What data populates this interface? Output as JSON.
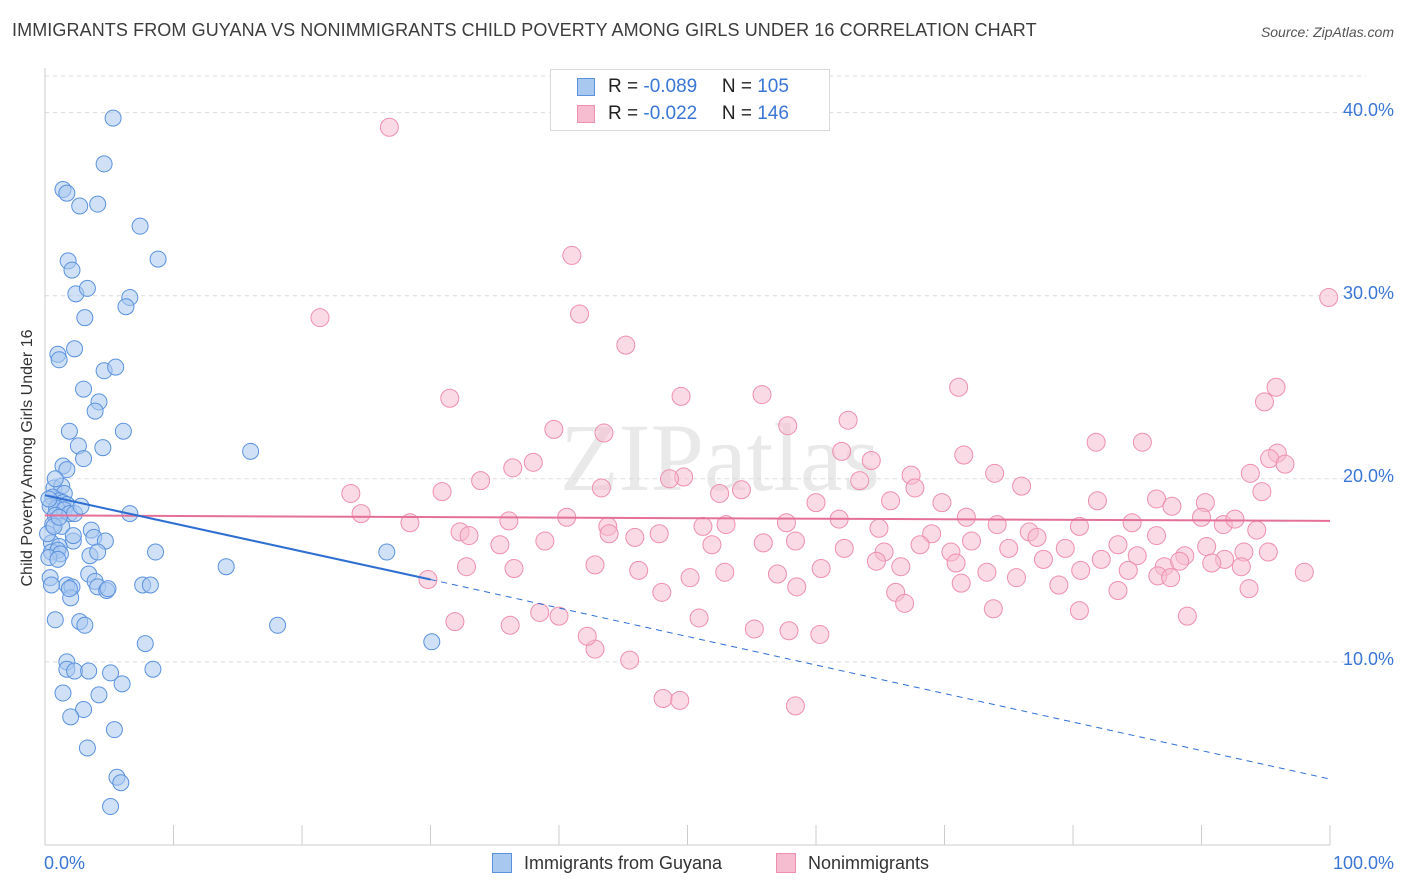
{
  "title": "IMMIGRANTS FROM GUYANA VS NONIMMIGRANTS CHILD POVERTY AMONG GIRLS UNDER 16 CORRELATION CHART",
  "source": "Source: ZipAtlas.com",
  "watermark": "ZIPatlas",
  "stats": [
    {
      "r_label": "R = ",
      "r_value": "-0.089",
      "n_label": "N = ",
      "n_value": "105"
    },
    {
      "r_label": "R = ",
      "r_value": "-0.022",
      "n_label": "N = ",
      "n_value": "146"
    }
  ],
  "chart_data": {
    "type": "scatter",
    "title": "IMMIGRANTS FROM GUYANA VS NONIMMIGRANTS CHILD POVERTY AMONG GIRLS UNDER 16 CORRELATION CHART",
    "xlabel": "",
    "ylabel": "Child Poverty Among Girls Under 16",
    "xlim": [
      0,
      100
    ],
    "ylim": [
      0,
      42
    ],
    "x_tick_labels": [
      "0.0%",
      "100.0%"
    ],
    "y_ticks": [
      10,
      20,
      30,
      40
    ],
    "y_tick_labels": [
      "10.0%",
      "20.0%",
      "30.0%",
      "40.0%"
    ],
    "grid": true,
    "legend_position": "bottom-center",
    "colors": {
      "guyana_fill": "#a9c8f0",
      "guyana_edge": "#5b92de",
      "guyana_line": "#2e6fd1",
      "nonimm_fill": "#f6bcd0",
      "nonimm_edge": "#ee8fae",
      "nonimm_line": "#e4709a",
      "accent_text": "#3a76d6",
      "grid": "#dcdcdc"
    },
    "series": [
      {
        "name": "Immigrants from Guyana",
        "r": -0.089,
        "n": 105,
        "trend": {
          "x0": 0,
          "y0": 19.1,
          "x_solid_end": 30,
          "y_solid_end": 14.5,
          "x1": 100,
          "y1": 3.6
        },
        "points": [
          [
            5.3,
            39.7
          ],
          [
            4.6,
            37.2
          ],
          [
            1.4,
            35.8
          ],
          [
            1.7,
            35.6
          ],
          [
            2.7,
            34.9
          ],
          [
            4.1,
            35.0
          ],
          [
            7.4,
            33.8
          ],
          [
            8.8,
            32.0
          ],
          [
            1.8,
            31.9
          ],
          [
            2.1,
            31.4
          ],
          [
            2.4,
            30.1
          ],
          [
            3.3,
            30.4
          ],
          [
            6.6,
            29.9
          ],
          [
            6.3,
            29.4
          ],
          [
            3.1,
            28.8
          ],
          [
            1.0,
            26.8
          ],
          [
            1.1,
            26.5
          ],
          [
            2.3,
            27.1
          ],
          [
            4.6,
            25.9
          ],
          [
            5.5,
            26.1
          ],
          [
            3.0,
            24.9
          ],
          [
            4.2,
            24.2
          ],
          [
            3.9,
            23.7
          ],
          [
            1.9,
            22.6
          ],
          [
            6.1,
            22.6
          ],
          [
            2.6,
            21.8
          ],
          [
            4.5,
            21.7
          ],
          [
            3.0,
            21.1
          ],
          [
            16.0,
            21.5
          ],
          [
            1.4,
            20.7
          ],
          [
            1.7,
            20.5
          ],
          [
            0.7,
            19.5
          ],
          [
            1.3,
            19.6
          ],
          [
            1.5,
            19.2
          ],
          [
            0.6,
            19.0
          ],
          [
            1.1,
            18.8
          ],
          [
            1.4,
            18.7
          ],
          [
            1.7,
            18.6
          ],
          [
            0.4,
            18.5
          ],
          [
            0.9,
            18.4
          ],
          [
            1.5,
            18.3
          ],
          [
            0.8,
            18.0
          ],
          [
            1.9,
            18.1
          ],
          [
            6.6,
            18.1
          ],
          [
            0.6,
            17.5
          ],
          [
            1.3,
            17.4
          ],
          [
            3.6,
            17.2
          ],
          [
            3.8,
            16.8
          ],
          [
            2.2,
            16.6
          ],
          [
            4.7,
            16.6
          ],
          [
            0.5,
            16.5
          ],
          [
            1.1,
            16.3
          ],
          [
            0.5,
            16.0
          ],
          [
            1.0,
            16.1
          ],
          [
            1.2,
            15.9
          ],
          [
            0.3,
            15.7
          ],
          [
            3.5,
            15.8
          ],
          [
            8.6,
            16.0
          ],
          [
            26.6,
            16.0
          ],
          [
            14.1,
            15.2
          ],
          [
            3.4,
            14.8
          ],
          [
            0.4,
            14.6
          ],
          [
            3.9,
            14.4
          ],
          [
            1.7,
            14.2
          ],
          [
            2.1,
            14.1
          ],
          [
            4.1,
            14.1
          ],
          [
            4.8,
            13.9
          ],
          [
            7.6,
            14.2
          ],
          [
            8.2,
            14.2
          ],
          [
            2.0,
            13.5
          ],
          [
            0.8,
            12.3
          ],
          [
            2.7,
            12.2
          ],
          [
            3.1,
            12.0
          ],
          [
            18.1,
            12.0
          ],
          [
            30.1,
            11.1
          ],
          [
            7.8,
            11.0
          ],
          [
            1.7,
            10.0
          ],
          [
            1.7,
            9.6
          ],
          [
            2.3,
            9.5
          ],
          [
            3.4,
            9.5
          ],
          [
            5.1,
            9.4
          ],
          [
            8.4,
            9.6
          ],
          [
            6.0,
            8.8
          ],
          [
            1.4,
            8.3
          ],
          [
            4.2,
            8.2
          ],
          [
            3.0,
            7.4
          ],
          [
            2.0,
            7.0
          ],
          [
            5.4,
            6.3
          ],
          [
            3.3,
            5.3
          ],
          [
            5.6,
            3.7
          ],
          [
            5.9,
            3.4
          ],
          [
            5.1,
            2.1
          ],
          [
            2.2,
            16.9
          ],
          [
            1.0,
            15.6
          ],
          [
            0.2,
            17.0
          ],
          [
            0.7,
            17.4
          ],
          [
            4.1,
            16.0
          ],
          [
            0.3,
            18.9
          ],
          [
            2.3,
            18.1
          ],
          [
            1.9,
            14.0
          ],
          [
            0.5,
            14.2
          ],
          [
            0.8,
            20.0
          ],
          [
            2.8,
            18.5
          ],
          [
            4.9,
            14.0
          ],
          [
            1.1,
            17.9
          ]
        ]
      },
      {
        "name": "Nonimmigrants",
        "r": -0.022,
        "n": 146,
        "trend": {
          "x0": 0,
          "y0": 18.0,
          "x1": 100,
          "y1": 17.7
        },
        "points": [
          [
            26.8,
            39.2
          ],
          [
            41.0,
            32.2
          ],
          [
            21.4,
            28.8
          ],
          [
            41.6,
            29.0
          ],
          [
            99.9,
            29.9
          ],
          [
            45.2,
            27.3
          ],
          [
            95.8,
            25.0
          ],
          [
            71.1,
            25.0
          ],
          [
            55.8,
            24.6
          ],
          [
            31.5,
            24.4
          ],
          [
            49.5,
            24.5
          ],
          [
            94.9,
            24.2
          ],
          [
            62.5,
            23.2
          ],
          [
            57.8,
            22.9
          ],
          [
            39.6,
            22.7
          ],
          [
            43.5,
            22.5
          ],
          [
            85.4,
            22.0
          ],
          [
            81.8,
            22.0
          ],
          [
            95.9,
            21.4
          ],
          [
            95.3,
            21.1
          ],
          [
            62.0,
            21.5
          ],
          [
            71.5,
            21.3
          ],
          [
            64.3,
            21.0
          ],
          [
            38.0,
            20.9
          ],
          [
            33.9,
            19.9
          ],
          [
            43.3,
            19.5
          ],
          [
            49.7,
            20.1
          ],
          [
            73.9,
            20.3
          ],
          [
            36.4,
            20.6
          ],
          [
            48.6,
            20.0
          ],
          [
            67.4,
            20.2
          ],
          [
            63.4,
            19.9
          ],
          [
            67.7,
            19.5
          ],
          [
            76.0,
            19.6
          ],
          [
            30.9,
            19.3
          ],
          [
            23.8,
            19.2
          ],
          [
            52.5,
            19.2
          ],
          [
            54.2,
            19.4
          ],
          [
            60.0,
            18.7
          ],
          [
            65.8,
            18.8
          ],
          [
            69.8,
            18.7
          ],
          [
            81.9,
            18.8
          ],
          [
            86.5,
            18.9
          ],
          [
            93.8,
            20.3
          ],
          [
            96.5,
            20.8
          ],
          [
            90.3,
            18.7
          ],
          [
            87.7,
            18.5
          ],
          [
            94.7,
            19.3
          ],
          [
            32.3,
            17.1
          ],
          [
            28.4,
            17.6
          ],
          [
            24.6,
            18.1
          ],
          [
            36.1,
            17.7
          ],
          [
            40.6,
            17.9
          ],
          [
            43.8,
            17.4
          ],
          [
            47.8,
            17.0
          ],
          [
            51.2,
            17.4
          ],
          [
            53.0,
            17.5
          ],
          [
            57.7,
            17.6
          ],
          [
            61.8,
            17.8
          ],
          [
            64.9,
            17.3
          ],
          [
            69.0,
            17.0
          ],
          [
            71.7,
            17.9
          ],
          [
            74.1,
            17.5
          ],
          [
            76.6,
            17.1
          ],
          [
            80.5,
            17.4
          ],
          [
            84.6,
            17.6
          ],
          [
            86.5,
            16.9
          ],
          [
            90.0,
            17.9
          ],
          [
            91.7,
            17.5
          ],
          [
            92.6,
            17.8
          ],
          [
            33.0,
            16.9
          ],
          [
            35.4,
            16.4
          ],
          [
            38.9,
            16.6
          ],
          [
            43.9,
            17.0
          ],
          [
            45.9,
            16.8
          ],
          [
            51.9,
            16.4
          ],
          [
            55.9,
            16.5
          ],
          [
            58.4,
            16.6
          ],
          [
            62.2,
            16.2
          ],
          [
            65.3,
            16.0
          ],
          [
            68.1,
            16.4
          ],
          [
            70.5,
            16.0
          ],
          [
            72.1,
            16.6
          ],
          [
            75.0,
            16.2
          ],
          [
            77.2,
            16.8
          ],
          [
            79.4,
            16.2
          ],
          [
            82.2,
            15.6
          ],
          [
            83.5,
            16.4
          ],
          [
            85.0,
            15.8
          ],
          [
            87.1,
            15.2
          ],
          [
            88.7,
            15.8
          ],
          [
            90.4,
            16.3
          ],
          [
            91.8,
            15.6
          ],
          [
            93.3,
            16.0
          ],
          [
            94.3,
            17.2
          ],
          [
            32.8,
            15.2
          ],
          [
            36.5,
            15.1
          ],
          [
            42.8,
            15.3
          ],
          [
            46.2,
            15.0
          ],
          [
            50.2,
            14.6
          ],
          [
            52.9,
            14.9
          ],
          [
            57.0,
            14.8
          ],
          [
            60.4,
            15.1
          ],
          [
            64.7,
            15.5
          ],
          [
            66.6,
            15.2
          ],
          [
            70.9,
            15.4
          ],
          [
            73.3,
            14.9
          ],
          [
            77.7,
            15.6
          ],
          [
            80.6,
            15.0
          ],
          [
            84.3,
            15.0
          ],
          [
            86.6,
            14.7
          ],
          [
            88.3,
            15.5
          ],
          [
            90.8,
            15.4
          ],
          [
            95.2,
            16.0
          ],
          [
            48.0,
            13.8
          ],
          [
            58.5,
            14.1
          ],
          [
            66.2,
            13.8
          ],
          [
            71.3,
            14.3
          ],
          [
            75.6,
            14.6
          ],
          [
            78.9,
            14.2
          ],
          [
            83.5,
            13.9
          ],
          [
            87.6,
            14.6
          ],
          [
            93.1,
            15.2
          ],
          [
            38.5,
            12.7
          ],
          [
            40.0,
            12.5
          ],
          [
            50.9,
            12.4
          ],
          [
            55.2,
            11.8
          ],
          [
            57.9,
            11.7
          ],
          [
            60.3,
            11.5
          ],
          [
            80.5,
            12.8
          ],
          [
            88.9,
            12.5
          ],
          [
            66.9,
            13.2
          ],
          [
            73.8,
            12.9
          ],
          [
            93.7,
            14.0
          ],
          [
            42.8,
            10.7
          ],
          [
            45.5,
            10.1
          ],
          [
            48.1,
            8.0
          ],
          [
            49.4,
            7.9
          ],
          [
            58.4,
            7.6
          ],
          [
            31.9,
            12.2
          ],
          [
            36.2,
            12.0
          ],
          [
            42.2,
            11.4
          ],
          [
            29.8,
            14.5
          ],
          [
            98.0,
            14.9
          ]
        ]
      }
    ]
  },
  "legend": {
    "items": [
      {
        "label": "Immigrants from Guyana"
      },
      {
        "label": "Nonimmigrants"
      }
    ]
  }
}
